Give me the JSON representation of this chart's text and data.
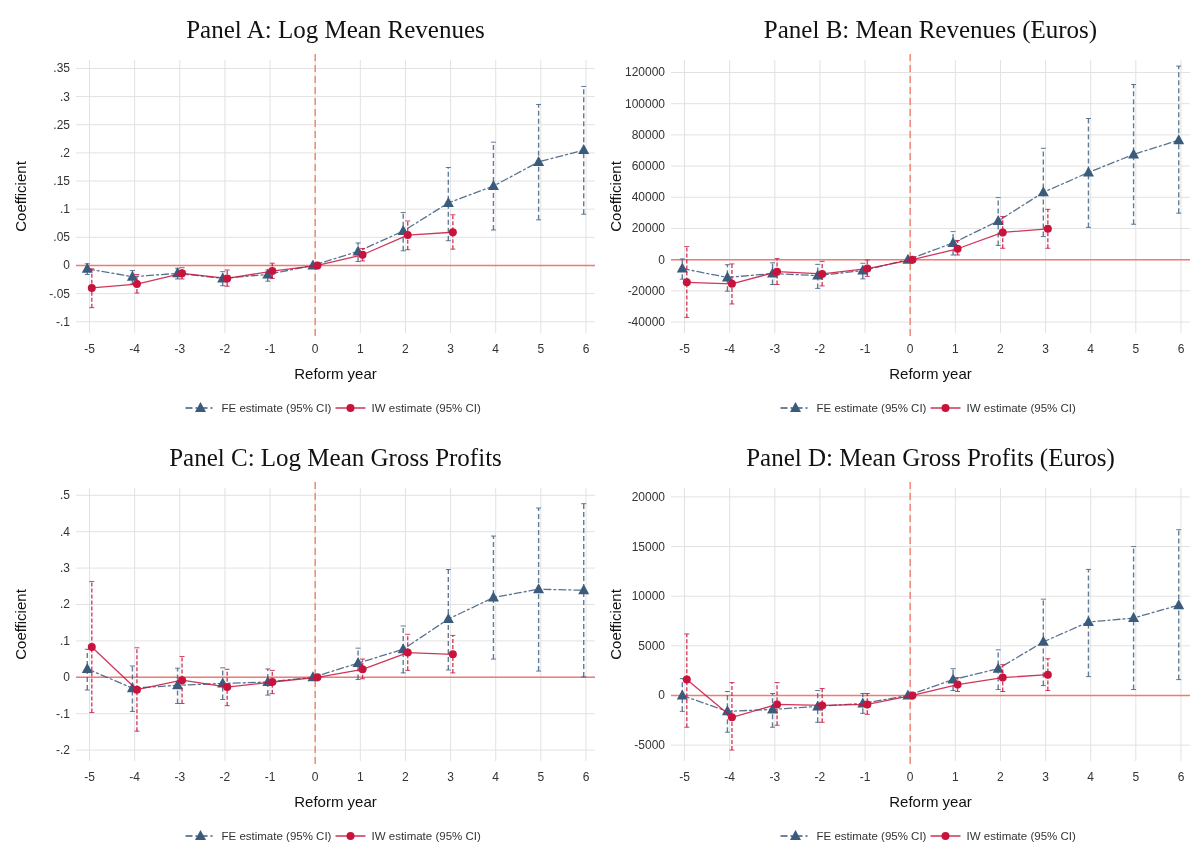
{
  "chart_data": [
    {
      "type": "line",
      "title": "Panel A: Log Mean Revenues",
      "xlabel": "Reform year",
      "ylabel": "Coefficient",
      "xlim": [
        -5.3,
        6.2
      ],
      "xticks": [
        -5,
        -4,
        -3,
        -2,
        -1,
        0,
        1,
        2,
        3,
        4,
        5,
        6
      ],
      "ylim": [
        -0.12,
        0.365
      ],
      "yticks": [
        {
          "value": -0.1,
          "label": "-.1"
        },
        {
          "value": -0.05,
          "label": "-.05"
        },
        0,
        {
          "value": 0.05,
          "label": ".05"
        },
        {
          "value": 0.1,
          "label": ".1"
        },
        {
          "value": 0.15,
          "label": ".15"
        },
        {
          "value": 0.2,
          "label": ".2"
        },
        {
          "value": 0.25,
          "label": ".25"
        },
        {
          "value": 0.3,
          "label": ".3"
        },
        {
          "value": 0.35,
          "label": ".35"
        }
      ],
      "grid": true,
      "legend": "bottom",
      "ref_lines": [
        {
          "axis": "x",
          "value": 0,
          "color": "#f08a74",
          "line_style": "dashed"
        },
        {
          "axis": "y",
          "value": 0,
          "color": "#f07b74",
          "line_style": "solid"
        }
      ],
      "series": [
        {
          "name": "FE estimate (95% CI)",
          "color": "#3b5b7d",
          "marker": "triangle",
          "line_style": "dashed",
          "x": [
            -5.05,
            -4.05,
            -3.05,
            -2.05,
            -1.05,
            -0.05,
            0.95,
            1.95,
            2.95,
            3.95,
            4.95,
            5.95
          ],
          "values": [
            -0.006,
            -0.02,
            -0.014,
            -0.023,
            -0.016,
            0,
            0.025,
            0.061,
            0.111,
            0.141,
            0.184,
            0.205
          ],
          "errors": [
            [
              -0.016,
              0.003
            ],
            [
              -0.033,
              -0.009
            ],
            [
              -0.024,
              -0.005
            ],
            [
              -0.036,
              -0.011
            ],
            [
              -0.028,
              -0.008
            ],
            null,
            [
              0.007,
              0.04
            ],
            [
              0.026,
              0.094
            ],
            [
              0.044,
              0.174
            ],
            [
              0.063,
              0.219
            ],
            [
              0.081,
              0.286
            ],
            [
              0.091,
              0.318
            ]
          ]
        },
        {
          "name": "IW estimate (95% CI)",
          "color": "#c8133c",
          "marker": "circle",
          "line_style": "solid",
          "x": [
            -4.95,
            -3.95,
            -2.95,
            -1.95,
            -0.95,
            0.05,
            1.05,
            2.05,
            3.05
          ],
          "values": [
            -0.04,
            -0.033,
            -0.014,
            -0.023,
            -0.01,
            0,
            0.019,
            0.054,
            0.059
          ],
          "errors": [
            [
              -0.075,
              -0.006
            ],
            [
              -0.049,
              -0.016
            ],
            [
              -0.024,
              -0.004
            ],
            [
              -0.037,
              -0.008
            ],
            [
              -0.023,
              0.004
            ],
            null,
            [
              0.008,
              0.03
            ],
            [
              0.028,
              0.079
            ],
            [
              0.029,
              0.09
            ]
          ]
        }
      ]
    },
    {
      "type": "line",
      "title": "Panel B: Mean Revenues (Euros)",
      "xlabel": "Reform year",
      "ylabel": "Coefficient",
      "xlim": [
        -5.3,
        6.2
      ],
      "xticks": [
        -5,
        -4,
        -3,
        -2,
        -1,
        0,
        1,
        2,
        3,
        4,
        5,
        6
      ],
      "ylim": [
        -47000,
        128000
      ],
      "yticks": [
        -40000,
        -20000,
        0,
        20000,
        40000,
        60000,
        80000,
        100000,
        120000
      ],
      "grid": true,
      "legend": "bottom",
      "ref_lines": [
        {
          "axis": "x",
          "value": 0,
          "color": "#f08a74",
          "line_style": "dashed"
        },
        {
          "axis": "y",
          "value": 0,
          "color": "#f07b74",
          "line_style": "solid"
        }
      ],
      "series": [
        {
          "name": "FE estimate (95% CI)",
          "color": "#3b5b7d",
          "marker": "triangle",
          "line_style": "dashed",
          "x": [
            -5.05,
            -4.05,
            -3.05,
            -2.05,
            -1.05,
            -0.05,
            0.95,
            1.95,
            2.95,
            3.95,
            4.95,
            5.95
          ],
          "values": [
            -5700,
            -11400,
            -8900,
            -10200,
            -7000,
            0,
            10700,
            24800,
            43200,
            55900,
            67500,
            76600
          ],
          "errors": [
            [
              -12500,
              500
            ],
            [
              -20200,
              -3200
            ],
            [
              -15900,
              -2000
            ],
            [
              -18400,
              -3000
            ],
            [
              -12300,
              -2300
            ],
            null,
            [
              3000,
              18000
            ],
            [
              9100,
              39800
            ],
            [
              14800,
              71400
            ],
            [
              20700,
              90500
            ],
            [
              22700,
              112300
            ],
            [
              29800,
              124100
            ]
          ]
        },
        {
          "name": "IW estimate (95% CI)",
          "color": "#c8133c",
          "marker": "circle",
          "line_style": "solid",
          "x": [
            -4.95,
            -3.95,
            -2.95,
            -1.95,
            -0.95,
            0.05,
            1.05,
            2.05,
            3.05
          ],
          "values": [
            -14500,
            -15500,
            -7700,
            -9100,
            -5700,
            0,
            7000,
            17500,
            19800
          ],
          "errors": [
            [
              -37000,
              8400
            ],
            [
              -28400,
              -2700
            ],
            [
              -15900,
              700
            ],
            [
              -16800,
              -1100
            ],
            [
              -10700,
              -200
            ],
            null,
            [
              3000,
              12300
            ],
            [
              7300,
              27700
            ],
            [
              7300,
              32300
            ]
          ]
        }
      ]
    },
    {
      "type": "line",
      "title": "Panel C: Log Mean Gross Profits",
      "xlabel": "Reform year",
      "ylabel": "Coefficient",
      "xlim": [
        -5.3,
        6.2
      ],
      "xticks": [
        -5,
        -4,
        -3,
        -2,
        -1,
        0,
        1,
        2,
        3,
        4,
        5,
        6
      ],
      "ylim": [
        -0.23,
        0.52
      ],
      "yticks": [
        {
          "value": -0.2,
          "label": "-.2"
        },
        {
          "value": -0.1,
          "label": "-.1"
        },
        0,
        {
          "value": 0.1,
          "label": ".1"
        },
        {
          "value": 0.2,
          "label": ".2"
        },
        {
          "value": 0.3,
          "label": ".3"
        },
        {
          "value": 0.4,
          "label": ".4"
        },
        {
          "value": 0.5,
          "label": ".5"
        }
      ],
      "grid": true,
      "legend": "bottom",
      "ref_lines": [
        {
          "axis": "x",
          "value": 0,
          "color": "#f08a74",
          "line_style": "dashed"
        },
        {
          "axis": "y",
          "value": 0,
          "color": "#f07b74",
          "line_style": "solid"
        }
      ],
      "series": [
        {
          "name": "FE estimate (95% CI)",
          "color": "#3b5b7d",
          "marker": "triangle",
          "line_style": "dashed",
          "x": [
            -5.05,
            -4.05,
            -3.05,
            -2.05,
            -1.05,
            -0.05,
            0.95,
            1.95,
            2.95,
            3.95,
            4.95,
            5.95
          ],
          "values": [
            0.023,
            -0.03,
            -0.022,
            -0.017,
            -0.013,
            0,
            0.039,
            0.077,
            0.16,
            0.219,
            0.242,
            0.239
          ],
          "errors": [
            [
              -0.035,
              0.077
            ],
            [
              -0.094,
              0.031
            ],
            [
              -0.072,
              0.025
            ],
            [
              -0.061,
              0.026
            ],
            [
              -0.049,
              0.023
            ],
            null,
            [
              -0.006,
              0.08
            ],
            [
              0.012,
              0.141
            ],
            [
              0.02,
              0.296
            ],
            [
              0.05,
              0.388
            ],
            [
              0.017,
              0.465
            ],
            [
              0.001,
              0.477
            ]
          ]
        },
        {
          "name": "IW estimate (95% CI)",
          "color": "#c8133c",
          "marker": "circle",
          "line_style": "solid",
          "x": [
            -4.95,
            -3.95,
            -2.95,
            -1.95,
            -0.95,
            0.05,
            1.05,
            2.05,
            3.05
          ],
          "values": [
            0.083,
            -0.034,
            -0.008,
            -0.027,
            -0.013,
            0,
            0.022,
            0.068,
            0.063
          ],
          "errors": [
            [
              -0.097,
              0.263
            ],
            [
              -0.148,
              0.081
            ],
            [
              -0.072,
              0.057
            ],
            [
              -0.078,
              0.022
            ],
            [
              -0.045,
              0.019
            ],
            null,
            [
              -0.004,
              0.05
            ],
            [
              0.019,
              0.118
            ],
            [
              0.012,
              0.115
            ]
          ]
        }
      ]
    },
    {
      "type": "line",
      "title": "Panel D: Mean Gross Profits (Euros)",
      "xlabel": "Reform year",
      "ylabel": "Coefficient",
      "xlim": [
        -5.3,
        6.2
      ],
      "xticks": [
        -5,
        -4,
        -3,
        -2,
        -1,
        0,
        1,
        2,
        3,
        4,
        5,
        6
      ],
      "ylim": [
        -6600,
        20900
      ],
      "yticks": [
        -5000,
        0,
        5000,
        10000,
        15000,
        20000
      ],
      "grid": true,
      "legend": "bottom",
      "ref_lines": [
        {
          "axis": "x",
          "value": 0,
          "color": "#f08a74",
          "line_style": "dashed"
        },
        {
          "axis": "y",
          "value": 0,
          "color": "#f07b74",
          "line_style": "solid"
        }
      ],
      "series": [
        {
          "name": "FE estimate (95% CI)",
          "color": "#3b5b7d",
          "marker": "triangle",
          "line_style": "dashed",
          "x": [
            -5.05,
            -4.05,
            -3.05,
            -2.05,
            -1.05,
            -0.05,
            0.95,
            1.95,
            2.95,
            3.95,
            4.95,
            5.95
          ],
          "values": [
            0,
            -1600,
            -1400,
            -1100,
            -800,
            0,
            1600,
            2700,
            5400,
            7400,
            7800,
            9100
          ],
          "errors": [
            [
              -1600,
              1700
            ],
            [
              -3700,
              400
            ],
            [
              -3200,
              200
            ],
            [
              -2700,
              500
            ],
            [
              -1800,
              200
            ],
            null,
            [
              500,
              2700
            ],
            [
              600,
              4600
            ],
            [
              1000,
              9700
            ],
            [
              1900,
              12700
            ],
            [
              600,
              15000
            ],
            [
              1600,
              16700
            ]
          ]
        },
        {
          "name": "IW estimate (95% CI)",
          "color": "#c8133c",
          "marker": "circle",
          "line_style": "solid",
          "x": [
            -4.95,
            -3.95,
            -2.95,
            -1.95,
            -0.95,
            0.05,
            1.05,
            2.05,
            3.05
          ],
          "values": [
            1600,
            -2200,
            -900,
            -1000,
            -900,
            0,
            1100,
            1800,
            2100
          ],
          "errors": [
            [
              -3200,
              6200
            ],
            [
              -5500,
              1300
            ],
            [
              -3000,
              1300
            ],
            [
              -2700,
              700
            ],
            [
              -1900,
              200
            ],
            null,
            [
              400,
              1800
            ],
            [
              400,
              3100
            ],
            [
              500,
              3700
            ]
          ]
        }
      ]
    }
  ]
}
